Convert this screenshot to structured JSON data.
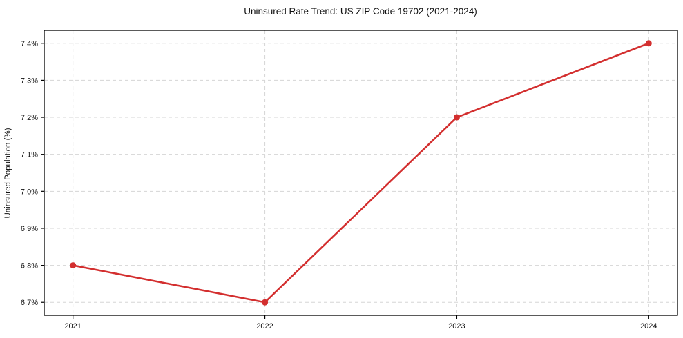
{
  "chart_data": {
    "type": "line",
    "title": "Uninsured Rate Trend: US ZIP Code 19702 (2021-2024)",
    "xlabel": "",
    "ylabel": "Uninsured Population (%)",
    "categories": [
      "2021",
      "2022",
      "2023",
      "2024"
    ],
    "x": [
      2021,
      2022,
      2023,
      2024
    ],
    "values": [
      6.8,
      6.7,
      7.2,
      7.4
    ],
    "y_ticks": [
      6.7,
      6.8,
      6.9,
      7.0,
      7.1,
      7.2,
      7.3,
      7.4
    ],
    "y_tick_labels": [
      "6.7%",
      "6.8%",
      "6.9%",
      "7.0%",
      "7.1%",
      "7.2%",
      "7.3%",
      "7.4%"
    ],
    "xlim": [
      2020.85,
      2024.15
    ],
    "ylim": [
      6.665,
      7.435
    ],
    "grid": true,
    "grid_style": "dashed",
    "legend": false,
    "colors": {
      "line": "#d32f2f",
      "marker": "#d32f2f",
      "grid": "#d5d5d5",
      "axis": "#000000",
      "text": "#111111",
      "background": "#ffffff"
    }
  }
}
